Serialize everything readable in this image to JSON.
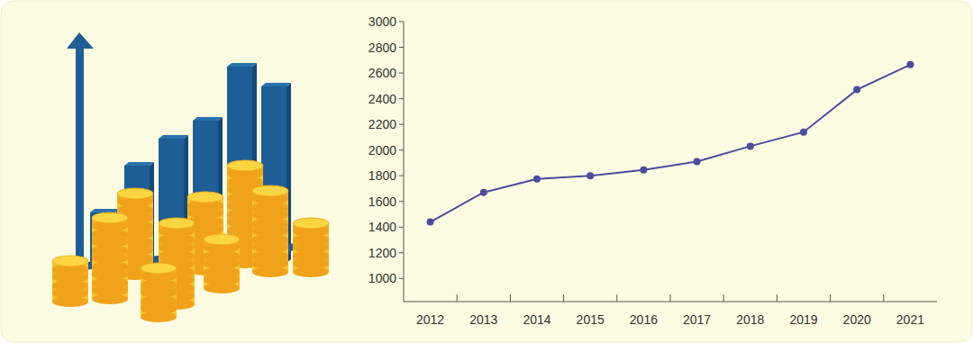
{
  "chart_data": {
    "type": "line",
    "categories": [
      "2012",
      "2013",
      "2014",
      "2015",
      "2016",
      "2017",
      "2018",
      "2019",
      "2020",
      "2021"
    ],
    "values": [
      1440,
      1670,
      1775,
      1800,
      1845,
      1910,
      2030,
      2140,
      2470,
      2665
    ],
    "color": "#4a4c9e",
    "marker": "circle",
    "ylim": [
      820,
      3000
    ],
    "yticks": [
      1000,
      1200,
      1400,
      1600,
      1800,
      2000,
      2200,
      2400,
      2600,
      2800,
      3000
    ],
    "grid": false
  }
}
